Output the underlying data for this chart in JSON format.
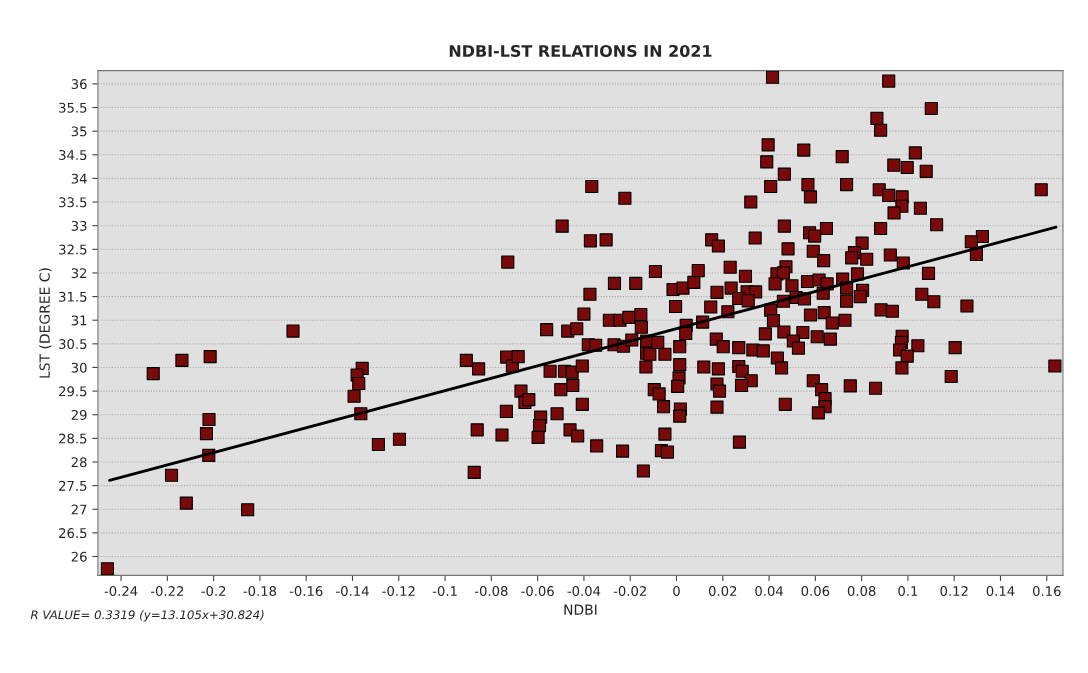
{
  "chart_data": {
    "type": "scatter",
    "title": "NDBI-LST RELATIONS IN 2021",
    "xlabel": "NDBI",
    "ylabel": "LST (DEGREE C)",
    "annotations": [
      "R VALUE= 0.3319 (y=13.105x+30.824)"
    ],
    "xlim": [
      -0.25,
      0.167
    ],
    "ylim": [
      25.6,
      36.28
    ],
    "xticks": [
      -0.24,
      -0.22,
      -0.2,
      -0.18,
      -0.16,
      -0.14,
      -0.12,
      -0.1,
      -0.08,
      -0.06,
      -0.04,
      -0.02,
      0,
      0.02,
      0.04,
      0.06,
      0.08,
      0.1,
      0.12,
      0.14,
      0.16
    ],
    "yticks": [
      26,
      26.5,
      27,
      27.5,
      28,
      28.5,
      29,
      29.5,
      30,
      30.5,
      31,
      31.5,
      32,
      32.5,
      33,
      33.5,
      34,
      34.5,
      35,
      35.5,
      36
    ],
    "grid": "y",
    "legend": false,
    "marker": "square",
    "series": [
      {
        "color": "#7a0a0a",
        "x": [
          -0.2459,
          -0.2261,
          -0.2137,
          -0.2015,
          -0.1657,
          -0.202,
          -0.2031,
          -0.2021,
          -0.2182,
          -0.2118,
          -0.1853,
          -0.1358,
          -0.138,
          -0.1373,
          -0.1393,
          -0.1364,
          -0.1288,
          -0.1197,
          -0.0908,
          -0.0855,
          -0.0861,
          -0.0874,
          -0.0754,
          -0.0735,
          -0.0729,
          -0.0734,
          -0.0709,
          -0.0684,
          -0.0672,
          -0.0655,
          -0.0638,
          -0.0587,
          -0.0592,
          -0.0598,
          -0.0561,
          -0.0546,
          -0.0516,
          -0.0494,
          -0.05,
          -0.0484,
          -0.047,
          -0.0451,
          -0.0448,
          -0.046,
          -0.0427,
          -0.0431,
          -0.0407,
          -0.0407,
          -0.04,
          -0.0374,
          -0.0372,
          -0.0366,
          -0.0381,
          -0.0349,
          -0.0345,
          -0.0304,
          -0.029,
          -0.0268,
          -0.027,
          -0.0244,
          -0.0233,
          -0.0223,
          -0.0229,
          -0.0206,
          -0.0193,
          -0.0176,
          -0.0154,
          -0.0152,
          -0.0143,
          -0.0129,
          -0.0132,
          -0.0129,
          -0.0115,
          -0.0091,
          -0.0096,
          -0.0075,
          -0.0081,
          -0.005,
          -0.0056,
          -0.005,
          -0.0065,
          -0.0039,
          -0.0015,
          -0.0004,
          0.0028,
          0.0014,
          0.0014,
          0.0011,
          0.0005,
          0.0017,
          0.0014,
          0.0042,
          0.004,
          0.0075,
          0.0094,
          0.0113,
          0.0118,
          0.0152,
          0.0181,
          0.0175,
          0.0148,
          0.0172,
          0.0202,
          0.0181,
          0.0175,
          0.0186,
          0.0175,
          0.0232,
          0.0236,
          0.0222,
          0.0415,
          0.0917,
          0.1101,
          0.0866,
          0.0882,
          0.0396,
          0.039,
          0.055,
          0.0716,
          0.1032,
          0.0939,
          0.0997,
          0.1079,
          0.0466,
          0.0407,
          0.0568,
          0.0579,
          0.0735,
          0.1576,
          0.0876,
          0.0917,
          0.0975,
          0.0974,
          0.094,
          0.1054,
          0.0321,
          0.1124,
          0.0882,
          0.0466,
          0.0648,
          0.0575,
          0.0597,
          0.034,
          0.1322,
          0.1274,
          0.1296,
          0.0482,
          0.0591,
          0.0636,
          0.0802,
          0.0769,
          0.0757,
          0.0822,
          0.0924,
          0.098,
          0.1089,
          0.0473,
          0.0434,
          0.0462,
          0.0426,
          0.0298,
          0.0499,
          0.0566,
          0.0616,
          0.0651,
          0.0718,
          0.0782,
          0.0735,
          0.0804,
          0.0634,
          0.0517,
          0.0553,
          0.0462,
          0.0794,
          0.0735,
          0.106,
          0.1112,
          0.1255,
          0.0305,
          0.0342,
          0.0269,
          0.031,
          0.0407,
          0.0419,
          0.0579,
          0.0638,
          0.0673,
          0.0728,
          0.0884,
          0.0933,
          0.0384,
          0.0464,
          0.0546,
          0.0505,
          0.0527,
          0.0608,
          0.0665,
          0.0975,
          0.0972,
          0.0964,
          0.1043,
          0.0997,
          0.1204,
          0.0269,
          0.033,
          0.0375,
          0.0436,
          0.0454,
          0.0974,
          0.1635,
          0.0269,
          0.0284,
          0.0323,
          0.0281,
          0.0591,
          0.0627,
          0.0751,
          0.086,
          0.1187,
          0.0642,
          0.0642,
          0.0613,
          0.047,
          0.0272
        ],
        "values": [
          25.74,
          29.87,
          30.15,
          30.23,
          30.77,
          28.9,
          28.6,
          28.14,
          27.72,
          27.13,
          26.99,
          29.98,
          29.84,
          29.66,
          29.39,
          29.02,
          28.37,
          28.48,
          30.15,
          29.97,
          28.68,
          27.78,
          28.57,
          29.07,
          32.23,
          30.22,
          30.03,
          30.23,
          29.5,
          29.26,
          29.32,
          28.95,
          28.77,
          28.52,
          30.8,
          29.92,
          29.02,
          32.99,
          29.53,
          29.92,
          30.77,
          29.9,
          29.62,
          28.68,
          28.55,
          30.82,
          30.03,
          29.22,
          31.13,
          31.55,
          32.68,
          33.83,
          30.48,
          30.47,
          28.34,
          32.7,
          31.0,
          31.78,
          30.48,
          31.0,
          28.23,
          33.58,
          30.45,
          31.06,
          30.58,
          31.78,
          31.12,
          30.85,
          27.81,
          30.56,
          30.01,
          30.3,
          30.28,
          32.03,
          29.53,
          29.44,
          30.53,
          30.28,
          29.17,
          28.59,
          28.24,
          28.21,
          31.65,
          31.29,
          31.68,
          30.44,
          30.06,
          29.78,
          29.6,
          29.12,
          28.97,
          30.89,
          30.72,
          31.8,
          32.05,
          30.96,
          30.01,
          32.7,
          32.57,
          31.59,
          31.28,
          30.6,
          30.44,
          29.97,
          29.65,
          29.5,
          29.16,
          32.12,
          31.68,
          31.18,
          36.14,
          36.06,
          35.48,
          35.27,
          35.02,
          34.71,
          34.35,
          34.6,
          34.46,
          34.54,
          34.28,
          34.23,
          34.15,
          34.09,
          33.83,
          33.87,
          33.61,
          33.87,
          33.76,
          33.76,
          33.64,
          33.61,
          33.41,
          33.27,
          33.37,
          33.5,
          33.02,
          32.94,
          32.99,
          32.94,
          32.85,
          32.78,
          32.74,
          32.77,
          32.66,
          32.39,
          32.51,
          32.46,
          32.26,
          32.63,
          32.43,
          32.32,
          32.29,
          32.38,
          32.21,
          31.99,
          32.13,
          31.98,
          32.0,
          31.77,
          31.93,
          31.73,
          31.82,
          31.85,
          31.77,
          31.87,
          31.98,
          31.68,
          31.63,
          31.57,
          31.48,
          31.45,
          31.4,
          31.5,
          31.4,
          31.55,
          31.39,
          31.3,
          31.6,
          31.6,
          31.46,
          31.41,
          31.21,
          30.99,
          31.11,
          31.16,
          30.94,
          31.0,
          31.22,
          31.19,
          30.71,
          30.75,
          30.74,
          30.56,
          30.41,
          30.65,
          30.6,
          30.66,
          30.53,
          30.37,
          30.46,
          30.24,
          30.42,
          30.42,
          30.37,
          30.35,
          30.2,
          29.99,
          29.99,
          30.03,
          30.02,
          29.92,
          29.72,
          29.62,
          29.72,
          29.53,
          29.61,
          29.56,
          29.81,
          29.34,
          29.17,
          29.04,
          29.22,
          28.42
        ]
      },
      {
        "type": "line",
        "marker": "none",
        "color": "#000000",
        "x": [
          -0.245,
          0.164
        ],
        "values": [
          27.61,
          32.97
        ]
      }
    ]
  }
}
